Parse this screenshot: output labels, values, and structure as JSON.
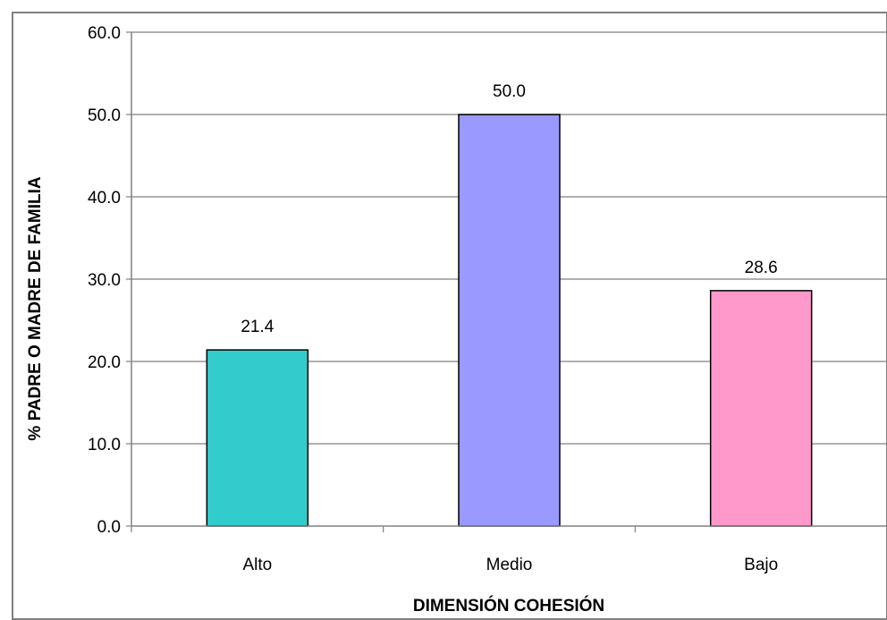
{
  "chart_data": {
    "type": "bar",
    "categories": [
      "Alto",
      "Medio",
      "Bajo"
    ],
    "values": [
      21.4,
      50.0,
      28.6
    ],
    "value_labels": [
      "21.4",
      "50.0",
      "28.6"
    ],
    "colors": [
      "#33CCCC",
      "#9999FF",
      "#FF99CC"
    ],
    "title": "",
    "xlabel": "DIMENSIÓN COHESIÓN",
    "ylabel": "% PADRE O MADRE DE FAMILIA",
    "ylim": [
      0,
      60
    ],
    "yticks": [
      "0.0",
      "10.0",
      "20.0",
      "30.0",
      "40.0",
      "50.0",
      "60.0"
    ],
    "grid": true,
    "legend": "none"
  }
}
